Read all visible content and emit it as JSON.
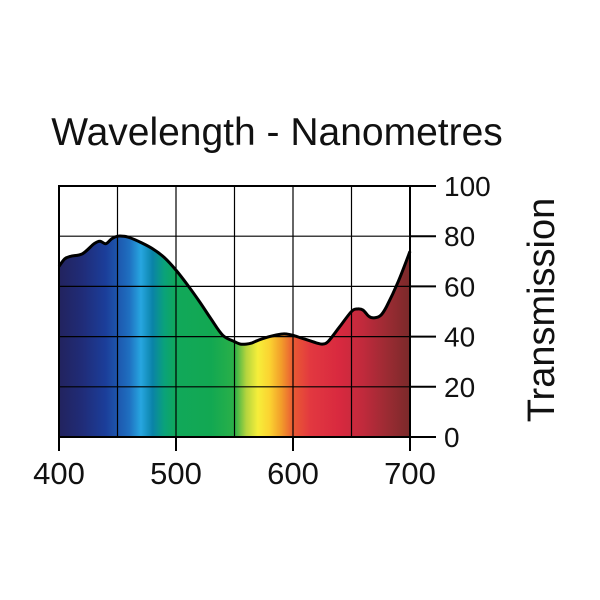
{
  "chart_data": {
    "type": "area",
    "title": "Wavelength - Nanometres",
    "xlabel": "Wavelength - Nanometres",
    "ylabel": "Transmission",
    "xlim": [
      400,
      700
    ],
    "ylim": [
      0,
      100
    ],
    "x_ticks": [
      400,
      500,
      600,
      700
    ],
    "y_ticks": [
      0,
      20,
      40,
      60,
      80,
      100
    ],
    "grid": true,
    "x_gridlines": [
      400,
      450,
      500,
      550,
      600,
      650,
      700
    ],
    "series": [
      {
        "name": "Transmission",
        "x": [
          400,
          405,
          410,
          420,
          430,
          435,
          440,
          445,
          450,
          455,
          460,
          470,
          480,
          490,
          500,
          510,
          520,
          530,
          540,
          550,
          555,
          560,
          565,
          570,
          580,
          590,
          595,
          600,
          610,
          620,
          625,
          630,
          640,
          650,
          655,
          660,
          665,
          670,
          675,
          680,
          690,
          700
        ],
        "values": [
          68,
          71,
          72,
          73,
          77,
          78,
          77,
          79,
          80,
          80,
          79.5,
          77.5,
          75,
          71.5,
          66.5,
          60.5,
          54,
          47,
          40.5,
          38,
          37,
          37,
          37.5,
          38.5,
          40,
          41,
          41,
          40.5,
          39,
          37.5,
          37,
          38,
          44,
          50,
          51,
          50.5,
          48,
          47.5,
          48.5,
          52,
          62,
          74
        ]
      }
    ],
    "spectrum_colors": [
      {
        "nm": 400,
        "color": "#22235e"
      },
      {
        "nm": 420,
        "color": "#202c78"
      },
      {
        "nm": 440,
        "color": "#1b3e9a"
      },
      {
        "nm": 460,
        "color": "#1f6fc0"
      },
      {
        "nm": 470,
        "color": "#27a6e0"
      },
      {
        "nm": 480,
        "color": "#0a83a8"
      },
      {
        "nm": 490,
        "color": "#0aa27a"
      },
      {
        "nm": 500,
        "color": "#11a85a"
      },
      {
        "nm": 530,
        "color": "#12a852"
      },
      {
        "nm": 550,
        "color": "#2bb048"
      },
      {
        "nm": 560,
        "color": "#b4d43e"
      },
      {
        "nm": 570,
        "color": "#f6ee3a"
      },
      {
        "nm": 580,
        "color": "#fbd331"
      },
      {
        "nm": 590,
        "color": "#f29d2a"
      },
      {
        "nm": 600,
        "color": "#ea5a33"
      },
      {
        "nm": 615,
        "color": "#e23840"
      },
      {
        "nm": 640,
        "color": "#d8293f"
      },
      {
        "nm": 660,
        "color": "#c02a3c"
      },
      {
        "nm": 680,
        "color": "#9c2b33"
      },
      {
        "nm": 700,
        "color": "#7a2a2a"
      }
    ]
  }
}
